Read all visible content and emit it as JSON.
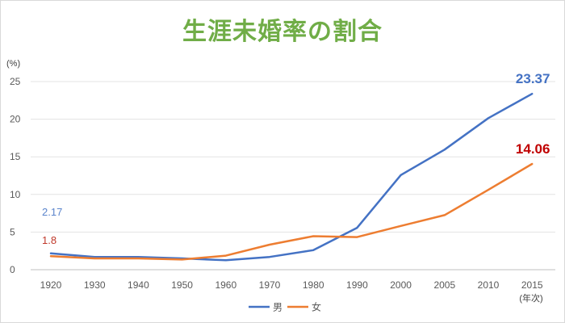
{
  "chart_data": {
    "type": "line",
    "title": "生涯未婚率の割合",
    "ylabel": "(%)",
    "xlabel": "(年次)",
    "ylim": [
      0,
      25
    ],
    "yticks": [
      0,
      5,
      10,
      15,
      20,
      25
    ],
    "grid": true,
    "legend": "bottom",
    "categories": [
      "1920",
      "1930",
      "1940",
      "1950",
      "1960",
      "1970",
      "1980",
      "1990",
      "2000",
      "2005",
      "2010",
      "2015"
    ],
    "series": [
      {
        "name": "男",
        "color": "#4472c4",
        "values": [
          2.17,
          1.7,
          1.7,
          1.5,
          1.26,
          1.7,
          2.6,
          5.57,
          12.57,
          15.96,
          20.14,
          23.37
        ],
        "start_label": "2.17",
        "end_label": "23.37"
      },
      {
        "name": "女",
        "color": "#ed7d31",
        "values": [
          1.8,
          1.5,
          1.5,
          1.35,
          1.87,
          3.33,
          4.45,
          4.33,
          5.82,
          7.25,
          10.61,
          14.06
        ],
        "start_label": "1.8",
        "end_label": "14.06"
      }
    ]
  }
}
